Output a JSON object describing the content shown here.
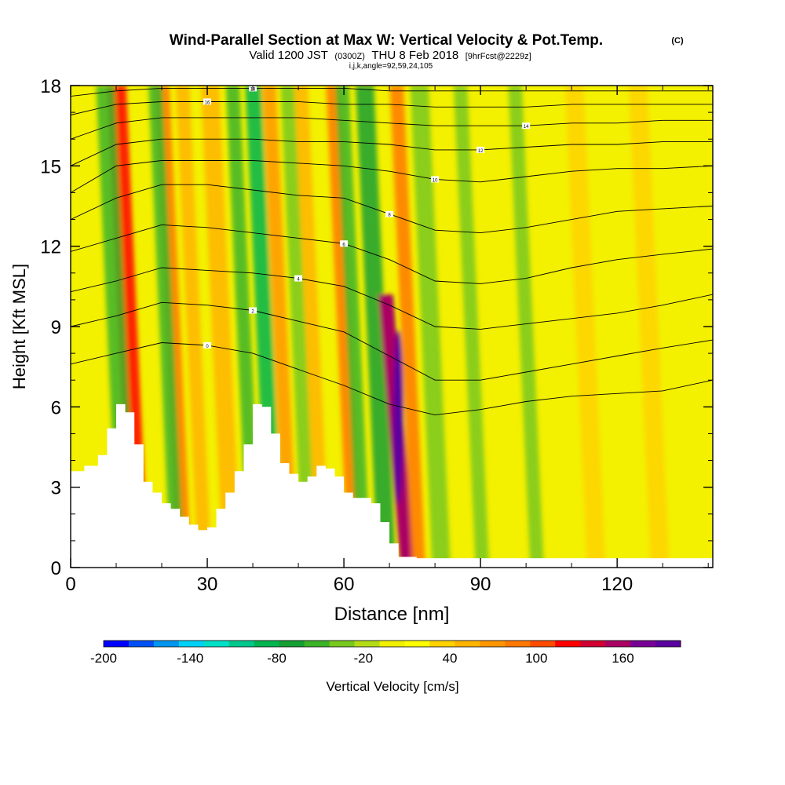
{
  "header": {
    "title": "Wind-Parallel Section at Max W: Vertical Velocity & Pot.Temp.",
    "copyright": "(C)",
    "valid_prefix": "Valid 1200 JST",
    "valid_utc": "(0300Z)",
    "valid_date": "THU 8 Feb 2018",
    "valid_fcst": "[9hrFcst@2229z]",
    "indices": "i,j,k,angle=92,59,24,105"
  },
  "chart_data": {
    "type": "heatmap",
    "title": "Wind-Parallel Section at Max W: Vertical Velocity & Pot.Temp.",
    "xlabel": "Distance [nm]",
    "ylabel": "Height [Kft MSL]",
    "xlim": [
      0,
      141
    ],
    "ylim": [
      0,
      18
    ],
    "x_ticks": [
      0,
      30,
      60,
      90,
      120
    ],
    "y_ticks": [
      0,
      3,
      6,
      9,
      12,
      15,
      18
    ],
    "colorbar": {
      "label": "Vertical Velocity [cm/s]",
      "tick_labels": [
        "-200",
        "-140",
        "-80",
        "-20",
        "40",
        "100",
        "160"
      ],
      "tick_values": [
        -200,
        -140,
        -80,
        -20,
        40,
        100,
        160
      ],
      "range": [
        -200,
        200
      ],
      "colors": [
        "#0000ff",
        "#0050f5",
        "#0096f0",
        "#00d2f5",
        "#00e1c8",
        "#00c88c",
        "#00b450",
        "#14a032",
        "#3cb428",
        "#78c81e",
        "#b4dc14",
        "#f0f000",
        "#ffff00",
        "#ffd200",
        "#ffb400",
        "#ff9600",
        "#ff7800",
        "#ff4b00",
        "#ff0000",
        "#d20032",
        "#aa0064",
        "#780096",
        "#5a00a0"
      ]
    },
    "terrain": {
      "note": "white terrain mask (kft)",
      "x": [
        0,
        3,
        6,
        8,
        10,
        12,
        14,
        16,
        18,
        20,
        22,
        24,
        26,
        28,
        30,
        32,
        34,
        36,
        38,
        40,
        42,
        44,
        46,
        48,
        50,
        52,
        54,
        56,
        58,
        60,
        62,
        64,
        66,
        68,
        70,
        72,
        76,
        80,
        90,
        141
      ],
      "y": [
        3.6,
        3.8,
        4.2,
        5.2,
        6.1,
        5.8,
        4.6,
        3.2,
        2.8,
        2.4,
        2.2,
        1.9,
        1.6,
        1.4,
        1.5,
        2.2,
        2.8,
        3.6,
        4.6,
        6.1,
        6.0,
        5.0,
        3.9,
        3.5,
        3.2,
        3.4,
        3.8,
        3.7,
        3.4,
        2.8,
        2.6,
        2.6,
        2.4,
        1.7,
        0.9,
        0.4,
        0.35,
        0.35,
        0.35,
        0.35
      ]
    },
    "velocity_bands": [
      {
        "x": 12.5,
        "w": 4.2,
        "top": 18,
        "value": 120
      },
      {
        "x": 10,
        "w": 4,
        "top": 18,
        "value": -60
      },
      {
        "x": 22.5,
        "w": 3.2,
        "top": 18,
        "value": 80
      },
      {
        "x": 21,
        "w": 3,
        "top": 18,
        "value": -60
      },
      {
        "x": 27,
        "w": 3,
        "top": 18,
        "value": 60
      },
      {
        "x": 33,
        "w": 4,
        "top": 18,
        "value": 60
      },
      {
        "x": 38,
        "w": 3,
        "top": 18,
        "value": -50
      },
      {
        "x": 42.5,
        "w": 3.5,
        "top": 18,
        "value": -80
      },
      {
        "x": 46,
        "w": 3,
        "top": 18,
        "value": 70
      },
      {
        "x": 50,
        "w": 3,
        "top": 18,
        "value": -40
      },
      {
        "x": 53,
        "w": 3,
        "top": 18,
        "value": 60
      },
      {
        "x": 60,
        "w": 3,
        "top": 18,
        "value": 80
      },
      {
        "x": 62,
        "w": 3,
        "top": 18,
        "value": -60
      },
      {
        "x": 67,
        "w": 4,
        "top": 18,
        "value": -70
      },
      {
        "x": 71.6,
        "w": 3.2,
        "top": 10.2,
        "value": 160
      },
      {
        "x": 74,
        "w": 3,
        "top": 18,
        "value": 80
      },
      {
        "x": 79,
        "w": 4,
        "top": 18,
        "value": -30
      },
      {
        "x": 88,
        "w": 3,
        "top": 18,
        "value": -40
      },
      {
        "x": 100,
        "w": 3,
        "top": 18,
        "value": -30
      },
      {
        "x": 113,
        "w": 4,
        "top": 18,
        "value": 40
      },
      {
        "x": 127,
        "w": 4,
        "top": 18,
        "value": 30
      }
    ],
    "theta_contours": {
      "levels": [
        "0",
        "2",
        "4",
        "6",
        "8",
        "10",
        "12",
        "14",
        "16",
        "18"
      ],
      "x": [
        0,
        10,
        20,
        30,
        40,
        50,
        60,
        70,
        80,
        90,
        100,
        110,
        120,
        130,
        141
      ],
      "heights": [
        [
          7.6,
          8.0,
          8.4,
          8.3,
          8.0,
          7.4,
          6.8,
          6.1,
          5.7,
          5.9,
          6.2,
          6.4,
          6.5,
          6.6,
          7.0
        ],
        [
          9.0,
          9.4,
          9.9,
          9.8,
          9.6,
          9.2,
          8.8,
          7.9,
          7.0,
          7.0,
          7.3,
          7.6,
          7.9,
          8.2,
          8.5
        ],
        [
          10.3,
          10.7,
          11.2,
          11.1,
          11.0,
          10.8,
          10.5,
          9.8,
          9.0,
          8.9,
          9.1,
          9.3,
          9.5,
          9.8,
          10.2
        ],
        [
          11.8,
          12.3,
          12.8,
          12.7,
          12.5,
          12.3,
          12.1,
          11.5,
          10.7,
          10.6,
          10.8,
          11.2,
          11.5,
          11.7,
          11.9
        ],
        [
          13.0,
          13.8,
          14.3,
          14.3,
          14.1,
          13.9,
          13.8,
          13.2,
          12.6,
          12.5,
          12.7,
          13.0,
          13.3,
          13.4,
          13.5
        ],
        [
          14.0,
          15.0,
          15.2,
          15.2,
          15.2,
          15.1,
          15.0,
          14.8,
          14.5,
          14.4,
          14.6,
          14.8,
          14.9,
          14.9,
          15.0
        ],
        [
          15.0,
          15.8,
          16.0,
          16.0,
          16.0,
          15.9,
          15.9,
          15.8,
          15.6,
          15.6,
          15.7,
          15.8,
          15.8,
          15.9,
          15.9
        ],
        [
          16.0,
          16.6,
          16.8,
          16.8,
          16.8,
          16.8,
          16.7,
          16.6,
          16.5,
          16.5,
          16.5,
          16.6,
          16.6,
          16.7,
          16.7
        ],
        [
          16.9,
          17.3,
          17.4,
          17.4,
          17.4,
          17.4,
          17.3,
          17.3,
          17.2,
          17.2,
          17.2,
          17.3,
          17.3,
          17.3,
          17.3
        ],
        [
          17.6,
          17.8,
          17.9,
          17.9,
          17.9,
          17.9,
          17.9,
          17.8,
          17.8,
          17.8,
          17.8,
          17.8,
          17.8,
          17.8,
          17.8
        ]
      ]
    }
  }
}
